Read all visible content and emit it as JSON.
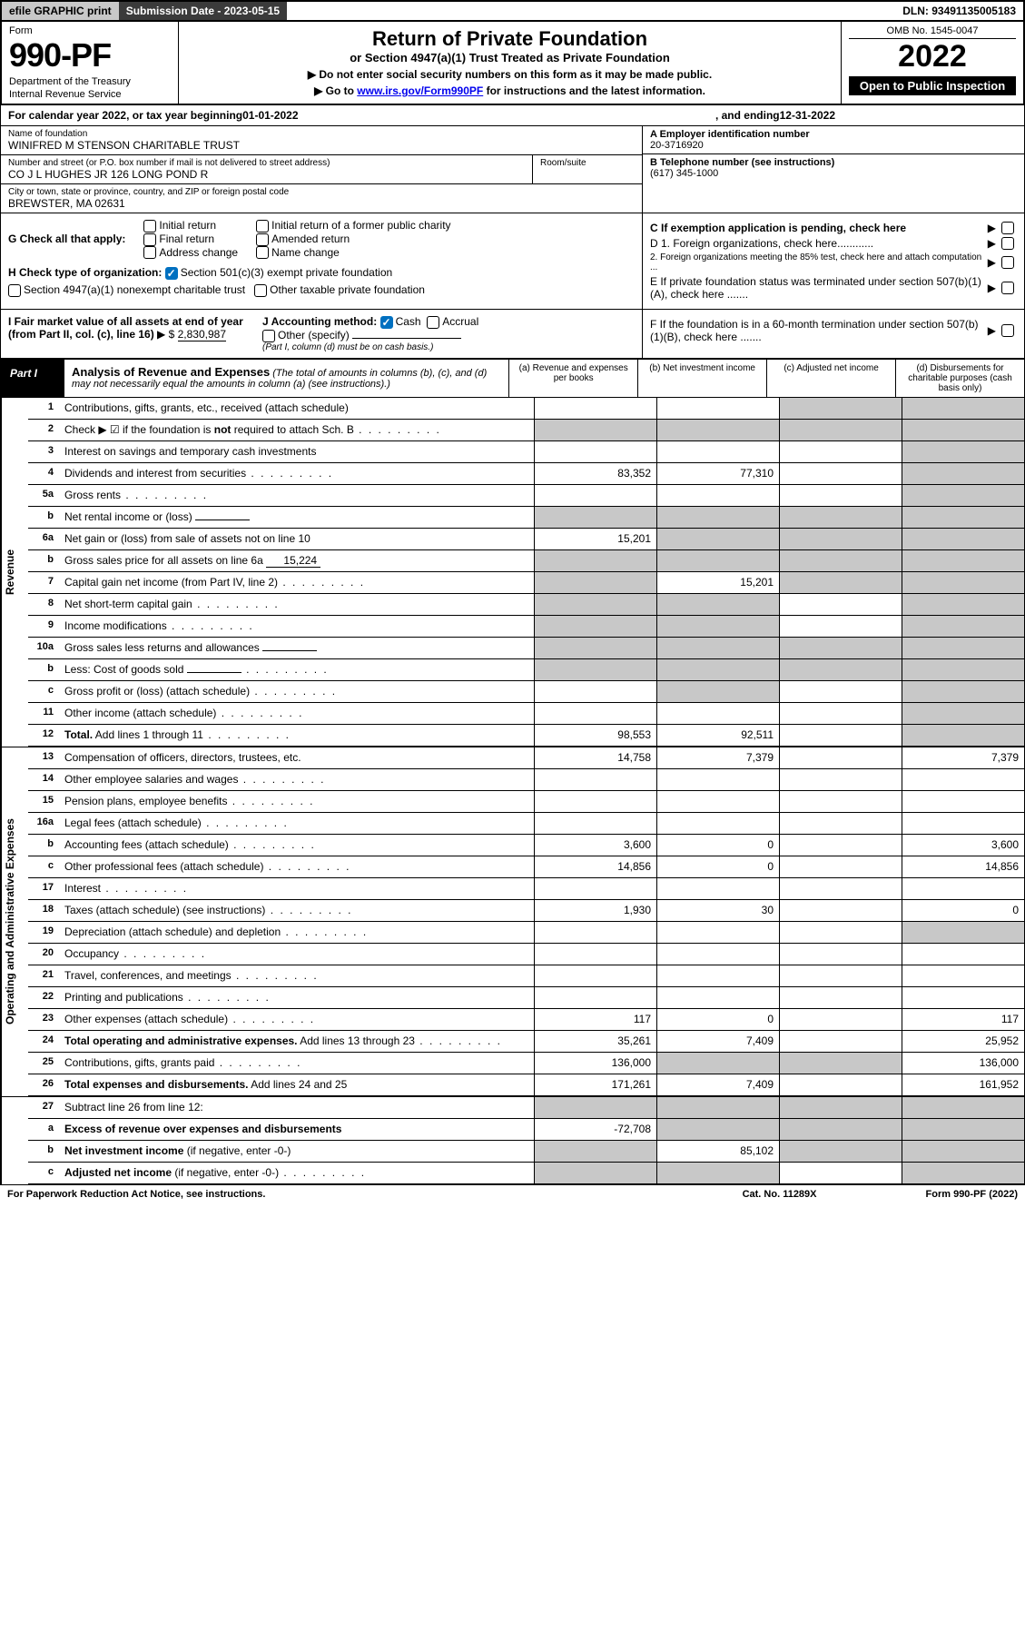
{
  "topbar": {
    "efile": "efile GRAPHIC print",
    "sub_label": "Submission Date - 2023-05-15",
    "dln": "DLN: 93491135005183"
  },
  "header": {
    "form_label": "Form",
    "form_no": "990-PF",
    "dept": "Department of the Treasury",
    "irs": "Internal Revenue Service",
    "title": "Return of Private Foundation",
    "subtitle": "or Section 4947(a)(1) Trust Treated as Private Foundation",
    "instr1": "▶ Do not enter social security numbers on this form as it may be made public.",
    "instr2_pre": "▶ Go to ",
    "instr2_link": "www.irs.gov/Form990PF",
    "instr2_post": " for instructions and the latest information.",
    "omb": "OMB No. 1545-0047",
    "year": "2022",
    "open": "Open to Public Inspection"
  },
  "cal": {
    "pre": "For calendar year 2022, or tax year beginning ",
    "begin": "01-01-2022",
    "mid": ", and ending ",
    "end": "12-31-2022"
  },
  "info": {
    "name_label": "Name of foundation",
    "name": "WINIFRED M STENSON CHARITABLE TRUST",
    "addr_label": "Number and street (or P.O. box number if mail is not delivered to street address)",
    "room_label": "Room/suite",
    "addr": "CO J L HUGHES JR 126 LONG POND R",
    "city_label": "City or town, state or province, country, and ZIP or foreign postal code",
    "city": "BREWSTER, MA  02631",
    "ein_label": "A Employer identification number",
    "ein": "20-3716920",
    "tel_label": "B Telephone number (see instructions)",
    "tel": "(617) 345-1000",
    "c": "C If exemption application is pending, check here",
    "d1": "D 1. Foreign organizations, check here............",
    "d2": "2. Foreign organizations meeting the 85% test, check here and attach computation ...",
    "e": "E  If private foundation status was terminated under section 507(b)(1)(A), check here .......",
    "f": "F  If the foundation is in a 60-month termination under section 507(b)(1)(B), check here ......."
  },
  "g": {
    "label": "G Check all that apply:",
    "opts": [
      "Initial return",
      "Final return",
      "Address change",
      "Initial return of a former public charity",
      "Amended return",
      "Name change"
    ]
  },
  "h": {
    "label": "H Check type of organization:",
    "opt1": "Section 501(c)(3) exempt private foundation",
    "opt2": "Section 4947(a)(1) nonexempt charitable trust",
    "opt3": "Other taxable private foundation"
  },
  "i": {
    "label": "I Fair market value of all assets at end of year (from Part II, col. (c), line 16)",
    "val": "2,830,987"
  },
  "j": {
    "label": "J Accounting method:",
    "cash": "Cash",
    "accrual": "Accrual",
    "other": "Other (specify)",
    "note": "(Part I, column (d) must be on cash basis.)"
  },
  "part1": {
    "tag": "Part I",
    "title": "Analysis of Revenue and Expenses",
    "note": "(The total of amounts in columns (b), (c), and (d) may not necessarily equal the amounts in column (a) (see instructions).)",
    "cols": {
      "a": "(a)  Revenue and expenses per books",
      "b": "(b)  Net investment income",
      "c": "(c)  Adjusted net income",
      "d": "(d)  Disbursements for charitable purposes (cash basis only)"
    }
  },
  "rows": {
    "revenue": [
      {
        "n": "1",
        "l": "Contributions, gifts, grants, etc., received (attach schedule)",
        "a": "",
        "b": "",
        "c": "sh",
        "d": "sh"
      },
      {
        "n": "2",
        "l": "Check ▶ ☑ if the foundation is <b>not</b> required to attach Sch. B",
        "dots": true,
        "a": "sh",
        "b": "sh",
        "c": "sh",
        "d": "sh"
      },
      {
        "n": "3",
        "l": "Interest on savings and temporary cash investments",
        "a": "",
        "b": "",
        "c": "",
        "d": "sh"
      },
      {
        "n": "4",
        "l": "Dividends and interest from securities",
        "dots": true,
        "a": "83,352",
        "b": "77,310",
        "c": "",
        "d": "sh"
      },
      {
        "n": "5a",
        "l": "Gross rents",
        "dots": true,
        "a": "",
        "b": "",
        "c": "",
        "d": "sh"
      },
      {
        "n": "b",
        "l": "Net rental income or (loss)",
        "inline": "",
        "a": "sh",
        "b": "sh",
        "c": "sh",
        "d": "sh"
      },
      {
        "n": "6a",
        "l": "Net gain or (loss) from sale of assets not on line 10",
        "a": "15,201",
        "b": "sh",
        "c": "sh",
        "d": "sh"
      },
      {
        "n": "b",
        "l": "Gross sales price for all assets on line 6a",
        "inline": "15,224",
        "a": "sh",
        "b": "sh",
        "c": "sh",
        "d": "sh"
      },
      {
        "n": "7",
        "l": "Capital gain net income (from Part IV, line 2)",
        "dots": true,
        "a": "sh",
        "b": "15,201",
        "c": "sh",
        "d": "sh"
      },
      {
        "n": "8",
        "l": "Net short-term capital gain",
        "dots": true,
        "a": "sh",
        "b": "sh",
        "c": "",
        "d": "sh"
      },
      {
        "n": "9",
        "l": "Income modifications",
        "dots": true,
        "a": "sh",
        "b": "sh",
        "c": "",
        "d": "sh"
      },
      {
        "n": "10a",
        "l": "Gross sales less returns and allowances",
        "inline": "",
        "a": "sh",
        "b": "sh",
        "c": "sh",
        "d": "sh"
      },
      {
        "n": "b",
        "l": "Less: Cost of goods sold",
        "dots": true,
        "inline": "",
        "a": "sh",
        "b": "sh",
        "c": "sh",
        "d": "sh"
      },
      {
        "n": "c",
        "l": "Gross profit or (loss) (attach schedule)",
        "dots": true,
        "a": "",
        "b": "sh",
        "c": "",
        "d": "sh"
      },
      {
        "n": "11",
        "l": "Other income (attach schedule)",
        "dots": true,
        "a": "",
        "b": "",
        "c": "",
        "d": "sh"
      },
      {
        "n": "12",
        "l": "<b>Total.</b> Add lines 1 through 11",
        "dots": true,
        "a": "98,553",
        "b": "92,511",
        "c": "",
        "d": "sh"
      }
    ],
    "expenses": [
      {
        "n": "13",
        "l": "Compensation of officers, directors, trustees, etc.",
        "a": "14,758",
        "b": "7,379",
        "c": "",
        "d": "7,379"
      },
      {
        "n": "14",
        "l": "Other employee salaries and wages",
        "dots": true,
        "a": "",
        "b": "",
        "c": "",
        "d": ""
      },
      {
        "n": "15",
        "l": "Pension plans, employee benefits",
        "dots": true,
        "a": "",
        "b": "",
        "c": "",
        "d": ""
      },
      {
        "n": "16a",
        "l": "Legal fees (attach schedule)",
        "dots": true,
        "a": "",
        "b": "",
        "c": "",
        "d": ""
      },
      {
        "n": "b",
        "l": "Accounting fees (attach schedule)",
        "dots": true,
        "a": "3,600",
        "b": "0",
        "c": "",
        "d": "3,600"
      },
      {
        "n": "c",
        "l": "Other professional fees (attach schedule)",
        "dots": true,
        "a": "14,856",
        "b": "0",
        "c": "",
        "d": "14,856"
      },
      {
        "n": "17",
        "l": "Interest",
        "dots": true,
        "a": "",
        "b": "",
        "c": "",
        "d": ""
      },
      {
        "n": "18",
        "l": "Taxes (attach schedule) (see instructions)",
        "dots": true,
        "a": "1,930",
        "b": "30",
        "c": "",
        "d": "0"
      },
      {
        "n": "19",
        "l": "Depreciation (attach schedule) and depletion",
        "dots": true,
        "a": "",
        "b": "",
        "c": "",
        "d": "sh"
      },
      {
        "n": "20",
        "l": "Occupancy",
        "dots": true,
        "a": "",
        "b": "",
        "c": "",
        "d": ""
      },
      {
        "n": "21",
        "l": "Travel, conferences, and meetings",
        "dots": true,
        "a": "",
        "b": "",
        "c": "",
        "d": ""
      },
      {
        "n": "22",
        "l": "Printing and publications",
        "dots": true,
        "a": "",
        "b": "",
        "c": "",
        "d": ""
      },
      {
        "n": "23",
        "l": "Other expenses (attach schedule)",
        "dots": true,
        "a": "117",
        "b": "0",
        "c": "",
        "d": "117"
      },
      {
        "n": "24",
        "l": "<b>Total operating and administrative expenses.</b> Add lines 13 through 23",
        "dots": true,
        "a": "35,261",
        "b": "7,409",
        "c": "",
        "d": "25,952"
      },
      {
        "n": "25",
        "l": "Contributions, gifts, grants paid",
        "dots": true,
        "a": "136,000",
        "b": "sh",
        "c": "sh",
        "d": "136,000"
      },
      {
        "n": "26",
        "l": "<b>Total expenses and disbursements.</b> Add lines 24 and 25",
        "a": "171,261",
        "b": "7,409",
        "c": "",
        "d": "161,952"
      }
    ],
    "bottom": [
      {
        "n": "27",
        "l": "Subtract line 26 from line 12:",
        "a": "sh",
        "b": "sh",
        "c": "sh",
        "d": "sh"
      },
      {
        "n": "a",
        "l": "<b>Excess of revenue over expenses and disbursements</b>",
        "a": "-72,708",
        "b": "sh",
        "c": "sh",
        "d": "sh"
      },
      {
        "n": "b",
        "l": "<b>Net investment income</b> (if negative, enter -0-)",
        "a": "sh",
        "b": "85,102",
        "c": "sh",
        "d": "sh"
      },
      {
        "n": "c",
        "l": "<b>Adjusted net income</b> (if negative, enter -0-)",
        "dots": true,
        "a": "sh",
        "b": "sh",
        "c": "",
        "d": "sh"
      }
    ]
  },
  "side_labels": {
    "rev": "Revenue",
    "exp": "Operating and Administrative Expenses"
  },
  "foot": {
    "l": "For Paperwork Reduction Act Notice, see instructions.",
    "m": "Cat. No. 11289X",
    "r": "Form 990-PF (2022)"
  },
  "colors": {
    "shade": "#c8c8c8",
    "dark": "#3b3b3b",
    "check": "#0070c0"
  }
}
